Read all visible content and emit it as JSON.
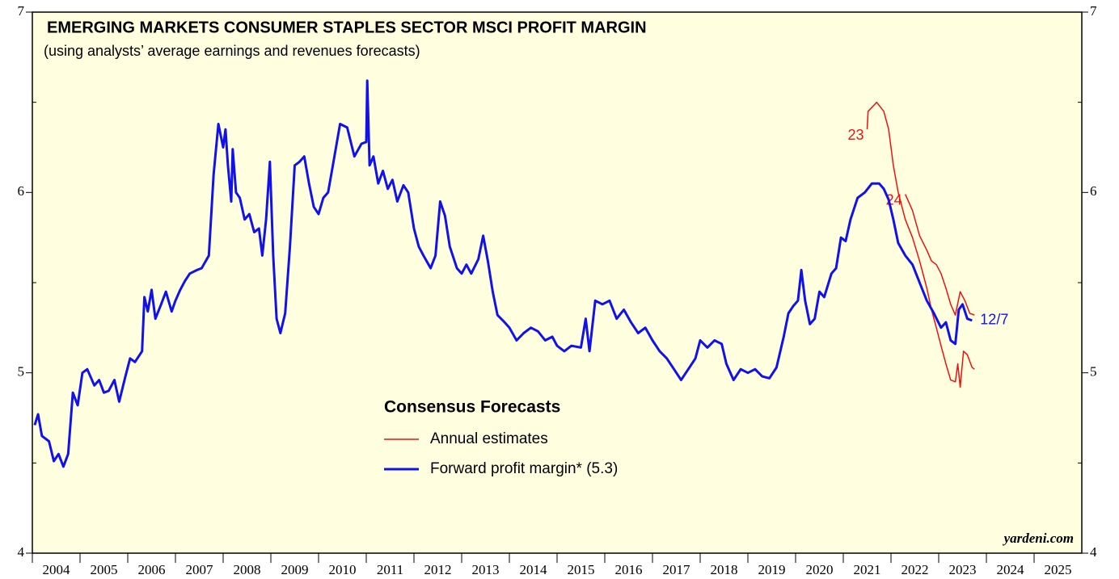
{
  "chart_data": {
    "type": "line",
    "title": "EMERGING MARKETS CONSUMER STAPLES SECTOR MSCI PROFIT MARGIN",
    "subtitle": "(using analysts’ average earnings and revenues forecasts)",
    "legend": {
      "title": "Consensus Forecasts"
    },
    "source": "yardeni.com",
    "xlim": [
      2004,
      2026
    ],
    "xticks": [
      {
        "value": 2004.5,
        "label": "2004"
      },
      {
        "value": 2005.5,
        "label": "2005"
      },
      {
        "value": 2006.5,
        "label": "2006"
      },
      {
        "value": 2007.5,
        "label": "2007"
      },
      {
        "value": 2008.5,
        "label": "2008"
      },
      {
        "value": 2009.5,
        "label": "2009"
      },
      {
        "value": 2010.5,
        "label": "2010"
      },
      {
        "value": 2011.5,
        "label": "2011"
      },
      {
        "value": 2012.5,
        "label": "2012"
      },
      {
        "value": 2013.5,
        "label": "2013"
      },
      {
        "value": 2014.5,
        "label": "2014"
      },
      {
        "value": 2015.5,
        "label": "2015"
      },
      {
        "value": 2016.5,
        "label": "2016"
      },
      {
        "value": 2017.5,
        "label": "2017"
      },
      {
        "value": 2018.5,
        "label": "2018"
      },
      {
        "value": 2019.5,
        "label": "2019"
      },
      {
        "value": 2020.5,
        "label": "2020"
      },
      {
        "value": 2021.5,
        "label": "2021"
      },
      {
        "value": 2022.5,
        "label": "2022"
      },
      {
        "value": 2023.5,
        "label": "2023"
      },
      {
        "value": 2024.5,
        "label": "2024"
      },
      {
        "value": 2025.5,
        "label": "2025"
      }
    ],
    "ylim": [
      4,
      7
    ],
    "yticks": [
      4,
      5,
      6,
      7
    ],
    "yminor_ticks": [
      4.5,
      5.5,
      6.5
    ],
    "series": [
      {
        "name": "Annual estimates",
        "label": "23",
        "color": "#ee1111",
        "x": [
          2021.5,
          2021.52,
          2021.7,
          2021.85,
          2021.95,
          2022.05,
          2022.15,
          2022.3,
          2022.45,
          2022.6,
          2022.75,
          2022.85,
          2022.95,
          2023.05,
          2023.15,
          2023.25,
          2023.35,
          2023.4,
          2023.45,
          2023.52,
          2023.6,
          2023.7,
          2023.75
        ],
        "values": [
          6.35,
          6.45,
          6.5,
          6.45,
          6.35,
          6.15,
          6.0,
          5.85,
          5.75,
          5.62,
          5.47,
          5.35,
          5.25,
          5.15,
          5.05,
          4.96,
          4.95,
          5.05,
          4.92,
          5.12,
          5.1,
          5.03,
          5.02
        ]
      },
      {
        "label": "24",
        "color": "#ee1111",
        "x": [
          2022.3,
          2022.45,
          2022.6,
          2022.75,
          2022.85,
          2022.95,
          2023.05,
          2023.15,
          2023.25,
          2023.35,
          2023.45,
          2023.55,
          2023.65,
          2023.75
        ],
        "values": [
          5.99,
          5.9,
          5.76,
          5.68,
          5.62,
          5.6,
          5.55,
          5.47,
          5.38,
          5.32,
          5.45,
          5.4,
          5.33,
          5.32
        ]
      },
      {
        "name": "Forward profit margin* (5.3)",
        "label": "12/7",
        "color": "#1111ee",
        "x": [
          2004.05,
          2004.12,
          2004.2,
          2004.35,
          2004.45,
          2004.55,
          2004.65,
          2004.75,
          2004.85,
          2004.95,
          2005.05,
          2005.15,
          2005.3,
          2005.4,
          2005.5,
          2005.6,
          2005.72,
          2005.82,
          2005.95,
          2006.05,
          2006.15,
          2006.3,
          2006.35,
          2006.42,
          2006.5,
          2006.58,
          2006.7,
          2006.8,
          2006.92,
          2007.0,
          2007.1,
          2007.2,
          2007.3,
          2007.45,
          2007.55,
          2007.7,
          2007.8,
          2007.9,
          2008.0,
          2008.05,
          2008.1,
          2008.17,
          2008.2,
          2008.27,
          2008.35,
          2008.45,
          2008.55,
          2008.65,
          2008.75,
          2008.82,
          2008.9,
          2008.98,
          2009.05,
          2009.12,
          2009.2,
          2009.3,
          2009.4,
          2009.5,
          2009.6,
          2009.7,
          2009.8,
          2009.9,
          2010.0,
          2010.1,
          2010.2,
          2010.3,
          2010.45,
          2010.6,
          2010.75,
          2010.9,
          2011.0,
          2011.02,
          2011.07,
          2011.15,
          2011.25,
          2011.35,
          2011.45,
          2011.55,
          2011.65,
          2011.78,
          2011.88,
          2012.0,
          2012.1,
          2012.2,
          2012.35,
          2012.45,
          2012.55,
          2012.65,
          2012.75,
          2012.9,
          2013.0,
          2013.1,
          2013.2,
          2013.35,
          2013.45,
          2013.55,
          2013.65,
          2013.75,
          2013.9,
          2014.0,
          2014.15,
          2014.3,
          2014.45,
          2014.6,
          2014.75,
          2014.9,
          2015.0,
          2015.15,
          2015.3,
          2015.5,
          2015.6,
          2015.68,
          2015.8,
          2015.95,
          2016.1,
          2016.25,
          2016.4,
          2016.55,
          2016.7,
          2016.85,
          2017.0,
          2017.15,
          2017.3,
          2017.45,
          2017.6,
          2017.75,
          2017.9,
          2018.0,
          2018.15,
          2018.3,
          2018.45,
          2018.55,
          2018.7,
          2018.85,
          2019.0,
          2019.15,
          2019.3,
          2019.45,
          2019.6,
          2019.75,
          2019.85,
          2019.95,
          2020.05,
          2020.12,
          2020.2,
          2020.3,
          2020.4,
          2020.5,
          2020.6,
          2020.75,
          2020.85,
          2020.95,
          2021.05,
          2021.15,
          2021.3,
          2021.45,
          2021.6,
          2021.75,
          2021.85,
          2021.95,
          2022.05,
          2022.15,
          2022.3,
          2022.45,
          2022.6,
          2022.75,
          2022.9,
          2023.05,
          2023.15,
          2023.25,
          2023.35,
          2023.42,
          2023.5,
          2023.6,
          2023.7
        ],
        "values": [
          4.71,
          4.77,
          4.65,
          4.62,
          4.51,
          4.55,
          4.48,
          4.55,
          4.89,
          4.82,
          5.0,
          5.02,
          4.93,
          4.96,
          4.89,
          4.9,
          4.96,
          4.84,
          4.98,
          5.08,
          5.06,
          5.12,
          5.42,
          5.34,
          5.46,
          5.3,
          5.38,
          5.45,
          5.34,
          5.4,
          5.46,
          5.51,
          5.55,
          5.57,
          5.58,
          5.65,
          6.1,
          6.38,
          6.25,
          6.35,
          6.15,
          5.95,
          6.24,
          6.0,
          5.97,
          5.85,
          5.88,
          5.78,
          5.8,
          5.65,
          5.85,
          6.17,
          5.65,
          5.3,
          5.22,
          5.33,
          5.7,
          6.15,
          6.17,
          6.2,
          6.05,
          5.92,
          5.88,
          5.97,
          6.0,
          6.15,
          6.38,
          6.36,
          6.2,
          6.27,
          6.28,
          6.62,
          6.15,
          6.2,
          6.05,
          6.12,
          6.02,
          6.07,
          5.95,
          6.04,
          6.0,
          5.8,
          5.7,
          5.65,
          5.58,
          5.65,
          5.95,
          5.87,
          5.7,
          5.58,
          5.55,
          5.6,
          5.55,
          5.63,
          5.76,
          5.62,
          5.45,
          5.32,
          5.28,
          5.25,
          5.18,
          5.22,
          5.25,
          5.23,
          5.18,
          5.2,
          5.15,
          5.12,
          5.15,
          5.14,
          5.3,
          5.12,
          5.4,
          5.38,
          5.4,
          5.3,
          5.35,
          5.28,
          5.22,
          5.25,
          5.18,
          5.12,
          5.08,
          5.02,
          4.96,
          5.02,
          5.08,
          5.18,
          5.14,
          5.18,
          5.16,
          5.05,
          4.96,
          5.02,
          5.0,
          5.02,
          4.98,
          4.97,
          5.03,
          5.2,
          5.33,
          5.37,
          5.4,
          5.57,
          5.4,
          5.27,
          5.3,
          5.45,
          5.42,
          5.55,
          5.58,
          5.75,
          5.73,
          5.85,
          5.97,
          6.0,
          6.05,
          6.05,
          6.02,
          5.96,
          5.85,
          5.72,
          5.65,
          5.6,
          5.5,
          5.4,
          5.33,
          5.25,
          5.28,
          5.18,
          5.16,
          5.35,
          5.38,
          5.3,
          5.29
        ]
      }
    ]
  }
}
